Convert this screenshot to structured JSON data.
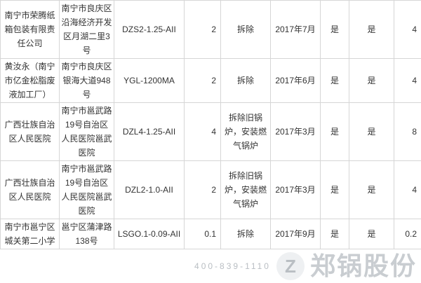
{
  "rows": [
    {
      "company": "南宁市荣腾纸箱包装有限责任公司",
      "address": "南宁市良庆区沿海经济开发区月湖二里3号",
      "model": "DZS2-1.25-AII",
      "tonnage": "2",
      "action": "拆除",
      "date": "2017年7月",
      "c1": "是",
      "c2": "是",
      "c3": "4"
    },
    {
      "company": "黄汝永（南宁市亿金松脂废液加工厂）",
      "address": "南宁市良庆区银海大道948号",
      "model": "YGL-1200MA",
      "tonnage": "2",
      "action": "拆除",
      "date": "2017年6月",
      "c1": "是",
      "c2": "是",
      "c3": "4"
    },
    {
      "company": "广西壮族自治区人民医院",
      "address": "南宁市邕武路19号自治区人民医院邕武医院",
      "model": "DZL4-1.25-AII",
      "tonnage": "4",
      "action": "拆除旧锅炉，安装燃气锅炉",
      "date": "2017年3月",
      "c1": "是",
      "c2": "是",
      "c3": "8"
    },
    {
      "company": "广西壮族自治区人民医院",
      "address": "南宁市邕武路19号自治区人民医院邕武医院",
      "model": "DZL2-1.0-AII",
      "tonnage": "2",
      "action": "拆除旧锅炉，安装燃气锅炉",
      "date": "2017年3月",
      "c1": "是",
      "c2": "是",
      "c3": "4"
    },
    {
      "company": "南宁市邕宁区城关第二小学",
      "address": "邕宁区蒲津路138号",
      "model": "LSGO.1-0.09-AII",
      "tonnage": "0.1",
      "action": "拆除",
      "date": "2017年9月",
      "c1": "是",
      "c2": "是",
      "c3": "0.2"
    }
  ],
  "watermark": {
    "name": "郑锅股份",
    "phone": "400-839-1110"
  }
}
